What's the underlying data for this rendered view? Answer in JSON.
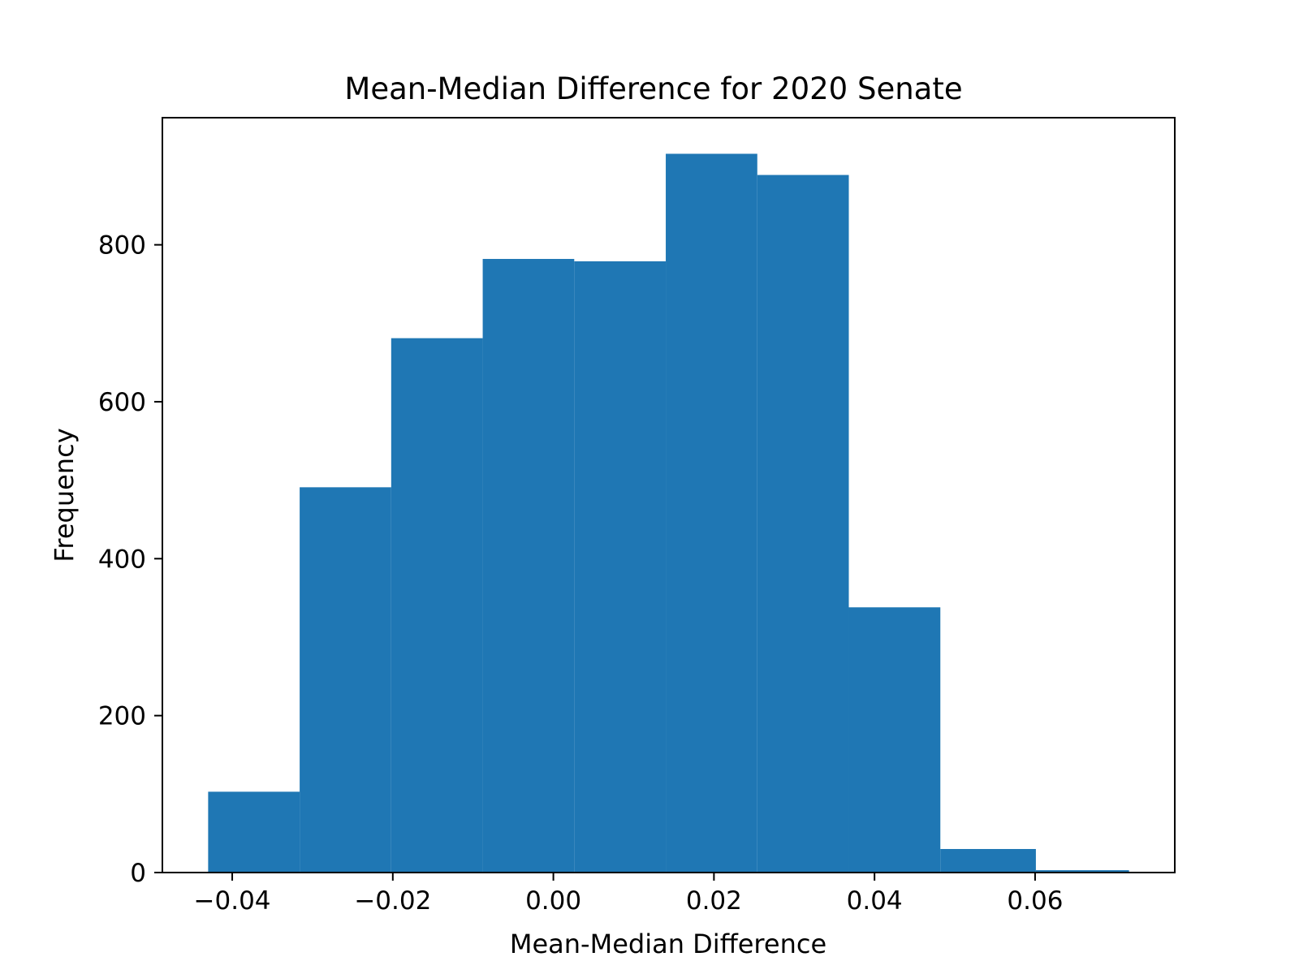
{
  "chart_data": {
    "type": "histogram",
    "title": "Mean-Median Difference for 2020 Senate",
    "xlabel": "Mean-Median Difference",
    "ylabel": "Frequency",
    "bin_edges": [
      -0.043,
      -0.0316,
      -0.0202,
      -0.0088,
      0.0026,
      0.014,
      0.0254,
      0.0368,
      0.0482,
      0.0601,
      0.0717
    ],
    "values": [
      103,
      491,
      681,
      782,
      779,
      916,
      889,
      338,
      30,
      3
    ],
    "xlim": [
      -0.0487,
      0.0774
    ],
    "ylim": [
      0,
      962
    ],
    "x_ticks": [
      -0.04,
      -0.02,
      0.0,
      0.02,
      0.04,
      0.06
    ],
    "x_tick_labels": [
      "−0.04",
      "−0.02",
      "0.00",
      "0.02",
      "0.04",
      "0.06"
    ],
    "y_ticks": [
      0,
      200,
      400,
      600,
      800
    ],
    "y_tick_labels": [
      "0",
      "200",
      "400",
      "600",
      "800"
    ],
    "bar_color": "#1f77b4",
    "grid": false,
    "legend": false
  }
}
